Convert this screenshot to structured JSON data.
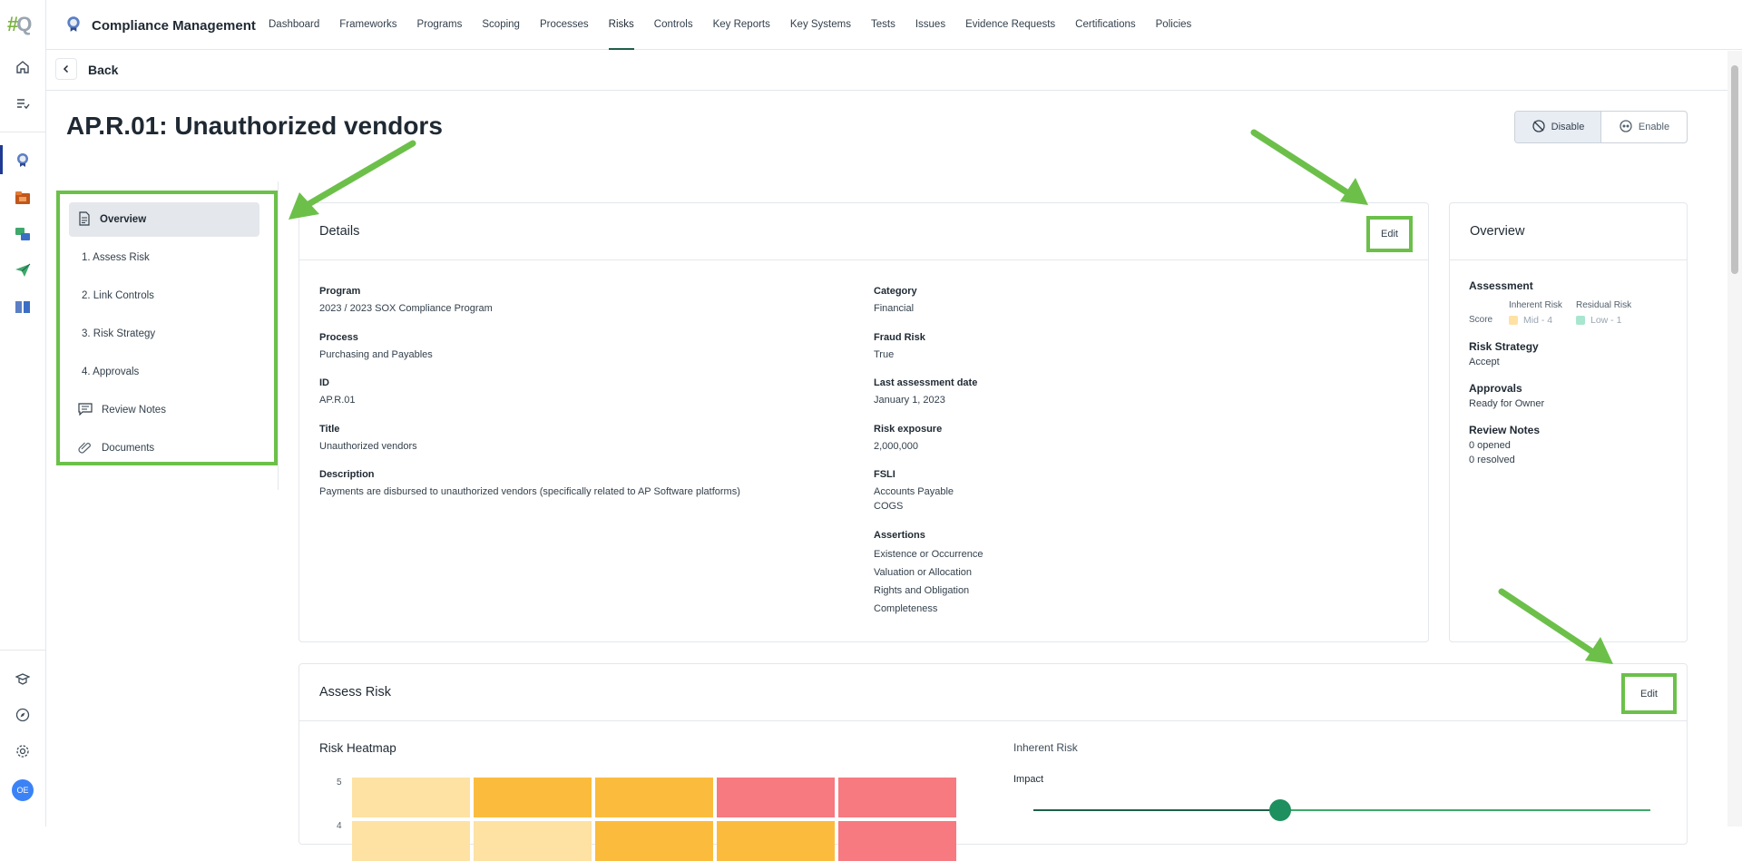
{
  "rail": {
    "logo_mark": "#",
    "logo_letter": "Q",
    "avatar_initials": "OE"
  },
  "header": {
    "app_title": "Compliance Management",
    "nav": [
      "Dashboard",
      "Frameworks",
      "Programs",
      "Scoping",
      "Processes",
      "Risks",
      "Controls",
      "Key Reports",
      "Key Systems",
      "Tests",
      "Issues",
      "Evidence Requests",
      "Certifications",
      "Policies"
    ],
    "active_nav": "Risks"
  },
  "back": {
    "label": "Back"
  },
  "page": {
    "title": "AP.R.01: Unauthorized vendors",
    "disable_label": "Disable",
    "enable_label": "Enable"
  },
  "sidebar": {
    "items": [
      "Overview",
      "1. Assess Risk",
      "2. Link Controls",
      "3. Risk Strategy",
      "4. Approvals",
      "Review Notes",
      "Documents"
    ]
  },
  "details": {
    "title": "Details",
    "edit_label": "Edit",
    "left": [
      {
        "label": "Program",
        "value": "2023 / 2023 SOX Compliance Program"
      },
      {
        "label": "Process",
        "value": "Purchasing and Payables"
      },
      {
        "label": "ID",
        "value": "AP.R.01"
      },
      {
        "label": "Title",
        "value": "Unauthorized vendors"
      },
      {
        "label": "Description",
        "value": "Payments are disbursed to unauthorized vendors (specifically related to AP Software platforms)"
      }
    ],
    "right": [
      {
        "label": "Category",
        "value": "Financial"
      },
      {
        "label": "Fraud Risk",
        "value": "True"
      },
      {
        "label": "Last assessment date",
        "value": "January 1, 2023"
      },
      {
        "label": "Risk exposure",
        "value": "2,000,000"
      }
    ],
    "fsli": {
      "label": "FSLI",
      "values": [
        "Accounts Payable",
        "COGS"
      ]
    },
    "assertions": {
      "label": "Assertions",
      "values": [
        "Existence or Occurrence",
        "Valuation or Allocation",
        "Rights and Obligation",
        "Completeness"
      ]
    }
  },
  "overview": {
    "title": "Overview",
    "assessment_label": "Assessment",
    "inherent_header": "Inherent Risk",
    "residual_header": "Residual Risk",
    "score_label": "Score",
    "inherent_score": "Mid - 4",
    "residual_score": "Low - 1",
    "inherent_color": "#fde2a4",
    "residual_color": "#a8e6cf",
    "risk_strategy_label": "Risk Strategy",
    "risk_strategy_value": "Accept",
    "approvals_label": "Approvals",
    "approvals_value": "Ready for Owner",
    "review_notes_label": "Review Notes",
    "review_opened": "0 opened",
    "review_resolved": "0 resolved"
  },
  "assess": {
    "title": "Assess Risk",
    "edit_label": "Edit",
    "heatmap_title": "Risk Heatmap",
    "y_ticks": [
      "5",
      "4"
    ],
    "heatmap_rows": [
      [
        "#fde2a4",
        "#fbbc3e",
        "#fbbc3e",
        "#f67a80",
        "#f67a80"
      ],
      [
        "#fde2a4",
        "#fde2a4",
        "#fbbc3e",
        "#fbbc3e",
        "#f67a80"
      ]
    ],
    "inherent_title": "Inherent Risk",
    "impact_label": "Impact",
    "impact_level": 0.4
  }
}
